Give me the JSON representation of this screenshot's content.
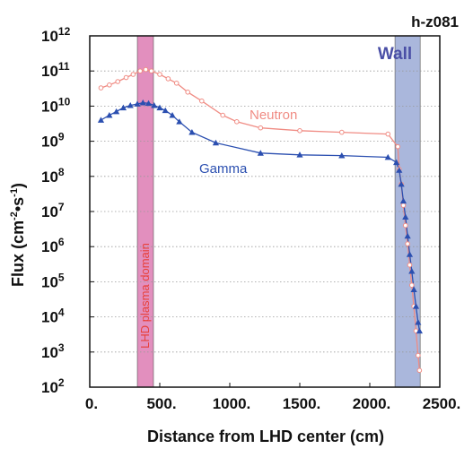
{
  "chart_data": {
    "type": "line",
    "title": "h-z081",
    "xlabel": "Distance from LHD center (cm)",
    "ylabel_main": "Flux (cm",
    "ylabel_sup1": "-2",
    "ylabel_dot": "•s",
    "ylabel_sup2": "-1",
    "ylabel_close": ")",
    "xlim": [
      0,
      2500
    ],
    "ylim_exponents": [
      2,
      12
    ],
    "yscale": "log",
    "grid": "horizontal dotted",
    "x_tick_labels": [
      "0.",
      "500.",
      "1000.",
      "1500.",
      "2000.",
      "2500."
    ],
    "y_tick_base": "10",
    "y_tick_exponents": [
      "2",
      "3",
      "4",
      "5",
      "6",
      "7",
      "8",
      "9",
      "10",
      "11",
      "12"
    ],
    "regions": [
      {
        "label": "LHD plasma domain",
        "x_start": 340,
        "x_end": 455,
        "color": "#d86aa8"
      },
      {
        "label": "Wall",
        "x_start": 2180,
        "x_end": 2360,
        "color": "#8e9fd0"
      }
    ],
    "series": [
      {
        "name": "Neutron",
        "color": "#f08c84",
        "marker": "circle",
        "points": [
          [
            80,
            33000000000.0
          ],
          [
            140,
            40000000000.0
          ],
          [
            200,
            50000000000.0
          ],
          [
            260,
            65000000000.0
          ],
          [
            310,
            80000000000.0
          ],
          [
            360,
            100000000000.0
          ],
          [
            400,
            110000000000.0
          ],
          [
            440,
            100000000000.0
          ],
          [
            500,
            80000000000.0
          ],
          [
            560,
            60000000000.0
          ],
          [
            620,
            45000000000.0
          ],
          [
            700,
            25000000000.0
          ],
          [
            800,
            14000000000.0
          ],
          [
            950,
            5500000000.0
          ],
          [
            1050,
            3600000000.0
          ],
          [
            1220,
            2400000000.0
          ],
          [
            1500,
            2000000000.0
          ],
          [
            1800,
            1800000000.0
          ],
          [
            2130,
            1600000000.0
          ],
          [
            2200,
            700000000.0
          ],
          [
            2210,
            160000000.0
          ],
          [
            2225,
            60000000.0
          ],
          [
            2240,
            15000000.0
          ],
          [
            2255,
            4000000.0
          ],
          [
            2270,
            1200000.0
          ],
          [
            2285,
            300000.0
          ],
          [
            2300,
            80000.0
          ],
          [
            2315,
            20000.0
          ],
          [
            2330,
            4000.0
          ],
          [
            2345,
            800.0
          ],
          [
            2355,
            300.0
          ]
        ]
      },
      {
        "name": "Gamma",
        "color": "#2b4fb0",
        "marker": "triangle",
        "points": [
          [
            80,
            4000000000.0
          ],
          [
            140,
            5500000000.0
          ],
          [
            190,
            7000000000.0
          ],
          [
            240,
            9000000000.0
          ],
          [
            290,
            10500000000.0
          ],
          [
            340,
            11500000000.0
          ],
          [
            380,
            12500000000.0
          ],
          [
            420,
            12000000000.0
          ],
          [
            460,
            10500000000.0
          ],
          [
            500,
            9000000000.0
          ],
          [
            540,
            7500000000.0
          ],
          [
            590,
            5500000000.0
          ],
          [
            640,
            3600000000.0
          ],
          [
            730,
            1800000000.0
          ],
          [
            900,
            900000000.0
          ],
          [
            1220,
            460000000.0
          ],
          [
            1500,
            410000000.0
          ],
          [
            1800,
            390000000.0
          ],
          [
            2130,
            350000000.0
          ],
          [
            2190,
            250000000.0
          ],
          [
            2210,
            150000000.0
          ],
          [
            2225,
            60000000.0
          ],
          [
            2240,
            20000000.0
          ],
          [
            2255,
            7000000.0
          ],
          [
            2270,
            2000000.0
          ],
          [
            2285,
            600000.0
          ],
          [
            2300,
            200000.0
          ],
          [
            2315,
            60000.0
          ],
          [
            2330,
            20000.0
          ],
          [
            2345,
            7000.0
          ],
          [
            2355,
            4000.0
          ]
        ]
      }
    ],
    "annotations": {
      "wall": "Wall",
      "plasma": "LHD plasma domain",
      "neutron": "Neutron",
      "gamma": "Gamma"
    }
  }
}
